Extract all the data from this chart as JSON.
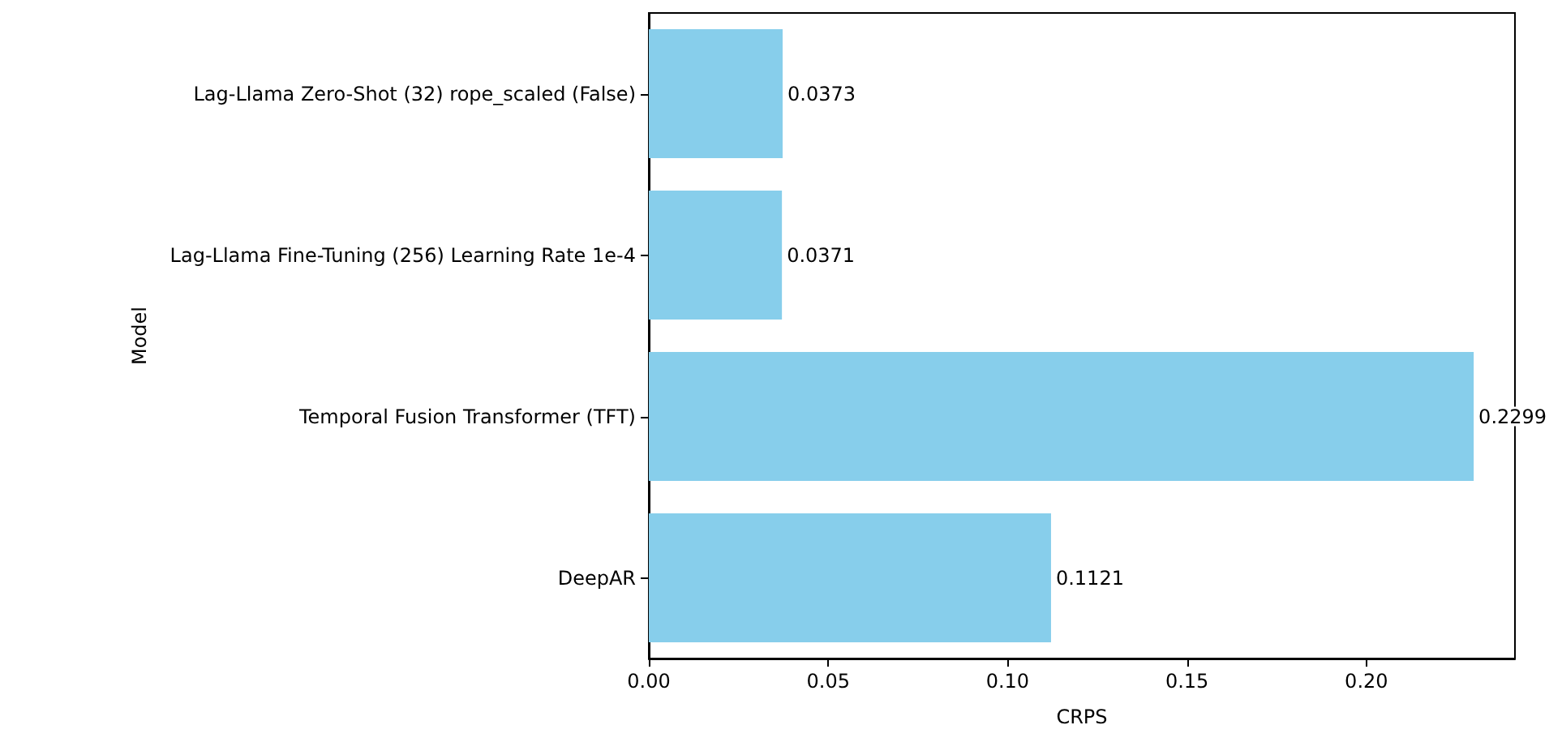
{
  "chart_data": {
    "type": "bar",
    "orientation": "horizontal",
    "xlabel": "CRPS",
    "ylabel": "Model",
    "categories": [
      "Lag-Llama Zero-Shot (32) rope_scaled (False)",
      "Lag-Llama Fine-Tuning (256) Learning Rate 1e-4",
      "Temporal Fusion Transformer (TFT)",
      "DeepAR"
    ],
    "values": [
      0.0373,
      0.0371,
      0.2299,
      0.1121
    ],
    "color": "#87ceeb",
    "xlim": [
      0,
      0.2414
    ],
    "xticks": [
      {
        "value": 0,
        "label": "0.00"
      },
      0.05,
      {
        "value": 0.1,
        "label": "0.10"
      },
      0.15,
      {
        "value": 0.2,
        "label": "0.20"
      }
    ],
    "data_labels": true
  }
}
